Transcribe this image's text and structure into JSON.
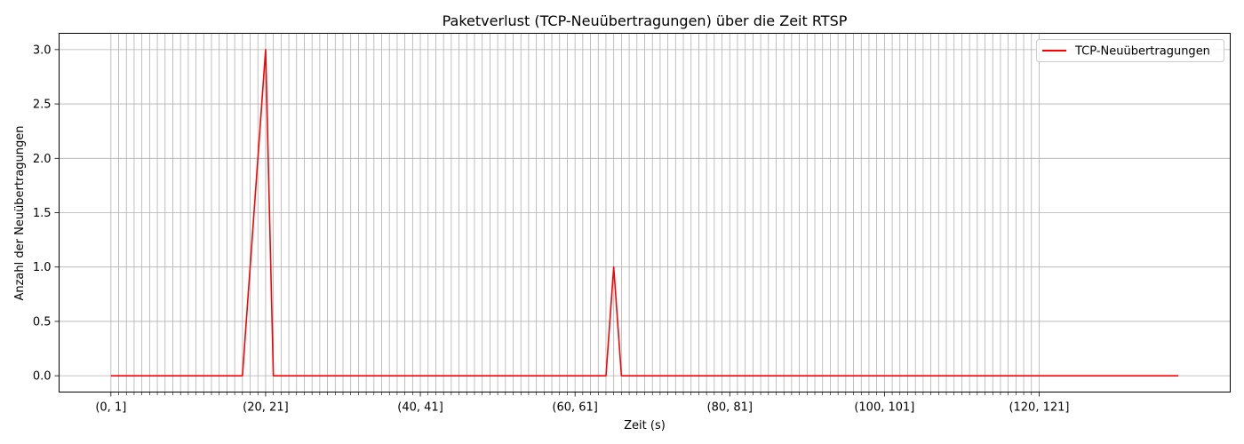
{
  "chart_data": {
    "type": "line",
    "title": "Paketverlust (TCP-Neuübertragungen) über die Zeit RTSP",
    "xlabel": "Zeit (s)",
    "ylabel": "Anzahl der Neuübertragungen",
    "x_tick_labels": [
      "(0, 1]",
      "(20, 21]",
      "(40, 41]",
      "(60, 61]",
      "(80, 81]",
      "(100, 101]",
      "(120, 121]"
    ],
    "x_tick_label_positions": [
      0,
      20,
      40,
      60,
      80,
      100,
      120
    ],
    "x_minor_ticks": [
      0,
      120
    ],
    "x_gridlines": [
      0,
      120
    ],
    "y_ticks": [
      0.0,
      0.5,
      1.0,
      1.5,
      2.0,
      2.5,
      3.0
    ],
    "y_tick_labels": [
      "0.0",
      "0.5",
      "1.0",
      "1.5",
      "2.0",
      "2.5",
      "3.0"
    ],
    "xlim": [
      -6.7,
      144.7
    ],
    "ylim": [
      -0.15,
      3.15
    ],
    "grid": true,
    "legend_position": "top-right",
    "series": [
      {
        "name": "TCP-Neuübertragungen",
        "color": "#ff0000",
        "x": [
          0,
          17,
          20,
          21,
          64,
          65,
          66,
          138
        ],
        "y": [
          0,
          0,
          3,
          0,
          0,
          1,
          0,
          0
        ]
      }
    ]
  }
}
